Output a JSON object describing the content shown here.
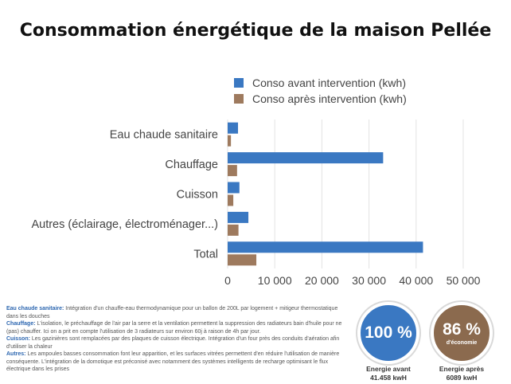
{
  "title": "Consommation énergétique de la maison Pellée",
  "chart_data": {
    "type": "bar",
    "orientation": "horizontal",
    "title": "Consommation énergétique de la maison Pellée",
    "categories": [
      "Eau chaude sanitaire",
      "Chauffage",
      "Cuisson",
      "Autres (éclairage, électroménager...)",
      "Total"
    ],
    "series": [
      {
        "name": "Conso avant intervention (kwh)",
        "color": "#3a78c2",
        "values": [
          2200,
          33000,
          2500,
          4400,
          41458
        ]
      },
      {
        "name": "Conso après intervention (kwh)",
        "color": "#9e7a5e",
        "values": [
          700,
          2000,
          1200,
          2300,
          6089
        ]
      }
    ],
    "xlim": [
      0,
      50000
    ],
    "ticks": [
      0,
      10000,
      20000,
      30000,
      40000,
      50000
    ],
    "tick_labels": [
      "0",
      "10 000",
      "20 000",
      "30 000",
      "40 000",
      "50 000"
    ],
    "legend_position": "top-right",
    "grid": true
  },
  "notes": [
    {
      "label": "Eau chaude sanitaire:",
      "text": " Intégration d'un chauffe-eau thermodynamique pour un ballon de 200L par logement + mitigeur thermostatique dans les douches"
    },
    {
      "label": "Chauffage:",
      "text": " L'isolation, le préchauffage de l'air par la serre et la ventilation permettent la suppression des radiateurs bain d'huile pour ne (pas) chauffer. Ici on a prit en compte l'utilisation de 3 radiateurs sur environ 60j à raison de 4h par jour."
    },
    {
      "label": "Cuisson:",
      "text": " Les gazinières sont remplacées par des plaques de cuisson électrique. Intégration d'un four près des conduits d'aération afin d'utiliser la chaleur"
    },
    {
      "label": "Autres:",
      "text": " Les ampoules basses consommation font leur apparition, et les surfaces vitrées permettent d'en réduire l'utilisation de manière conséquente. L'intégration de la domotique est préconisé avec notamment des systèmes intelligents de recharge optimisant le flux électrique dans les prises"
    }
  ],
  "stats": {
    "before": {
      "badge": "100 %",
      "label": "Energie avant",
      "value": "41.458 kwH",
      "color": "#3a78c2"
    },
    "after": {
      "badge": "86 %",
      "badge_sub": "d'économie",
      "label": "Energie après",
      "value": "6089 kwH",
      "color": "#8b6a4e"
    }
  }
}
